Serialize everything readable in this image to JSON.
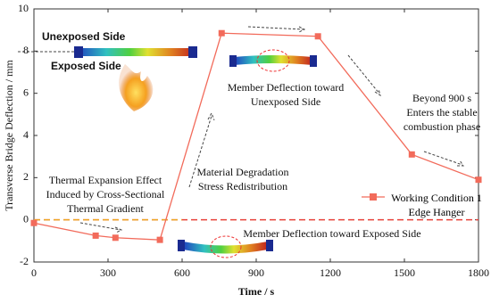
{
  "chart_data": {
    "type": "line",
    "x_label": "Time / s",
    "y_label": "Transverse Bridge Deflection / mm",
    "x": [
      0,
      250,
      330,
      510,
      760,
      1150,
      1530,
      1800
    ],
    "series": [
      {
        "name": "Working Condition 1 Edge Hanger",
        "color": "#f26b5b",
        "values": [
          -0.15,
          -0.75,
          -0.85,
          -0.95,
          8.85,
          8.7,
          3.1,
          1.9
        ]
      }
    ],
    "xlim": [
      0,
      1800
    ],
    "xticks": [
      0,
      300,
      600,
      900,
      1200,
      1500,
      1800
    ],
    "ylim": [
      -2,
      10
    ],
    "yticks": [
      -2,
      0,
      2,
      4,
      6,
      8,
      10
    ],
    "reference_line": {
      "value": 0,
      "color": "#e8413a"
    },
    "annotations": [
      {
        "lines": [
          "Unexposed Side"
        ]
      },
      {
        "lines": [
          "Exposed  Side"
        ]
      },
      {
        "lines": [
          "Member Deflection toward",
          "Unexposed Side"
        ]
      },
      {
        "lines": [
          "Beyond 900 s",
          "Enters the stable",
          "combustion phase"
        ]
      },
      {
        "lines": [
          "Material Degradation",
          "Stress Redistribution"
        ]
      },
      {
        "lines": [
          "Thermal Expansion Effect",
          "Induced by Cross-Sectional",
          "Thermal Gradient"
        ]
      },
      {
        "lines": [
          "Member Deflection toward Exposed Side"
        ]
      }
    ]
  }
}
